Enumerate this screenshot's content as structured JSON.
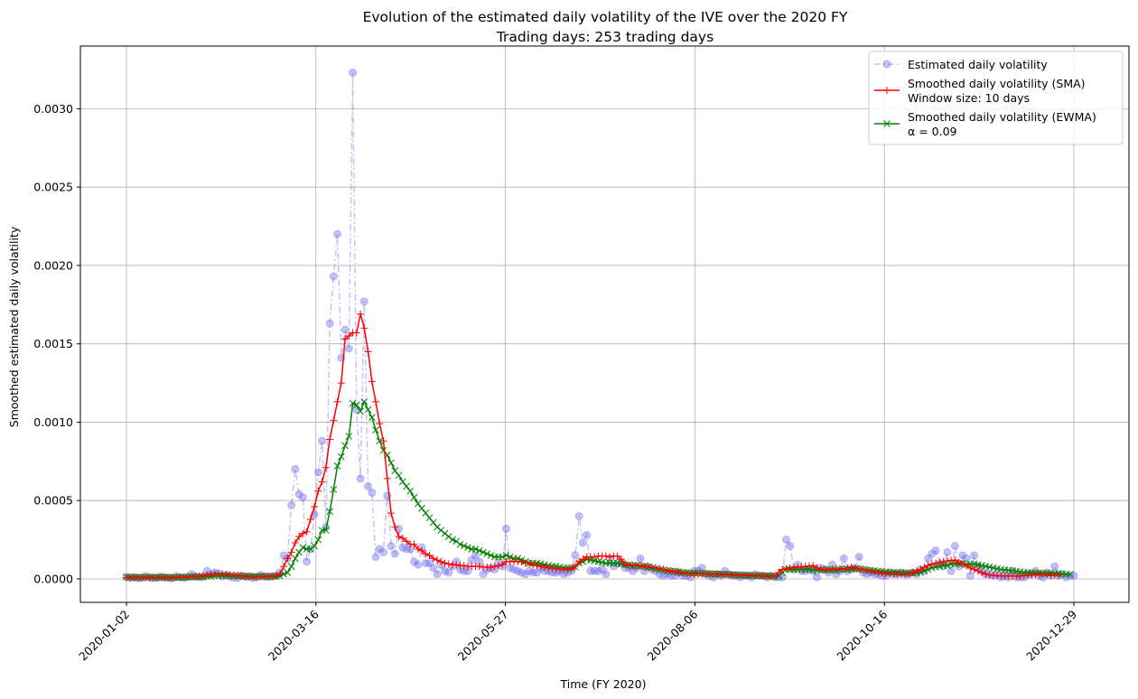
{
  "chart_data": {
    "type": "line",
    "title": "Evolution of the estimated daily volatility of the IVE over the 2020 FY",
    "subtitle": "Trading days: 253 trading days",
    "xlabel": "Time (FY 2020)",
    "ylabel": "Smoothed estimated daily volatility",
    "x_tick_labels": [
      "2020-01-02",
      "2020-03-16",
      "2020-05-27",
      "2020-08-06",
      "2020-10-16",
      "2020-12-29"
    ],
    "y_tick_labels": [
      "0.0000",
      "0.0005",
      "0.0010",
      "0.0015",
      "0.0020",
      "0.0025",
      "0.0030"
    ],
    "ylim": [
      -0.00015,
      0.0034
    ],
    "grid": true,
    "legend_position": "top-right",
    "colors": {
      "raw": "#6a6aee",
      "sma": "#ff0000",
      "ewma": "#008000"
    },
    "series": [
      {
        "key": "raw",
        "name": "Estimated daily volatility",
        "marker": "circle",
        "values": [
          1.2e-05,
          6e-06,
          1e-05,
          4e-06,
          6e-06,
          1.8e-05,
          1e-05,
          4e-06,
          7e-06,
          1.5e-05,
          9e-06,
          6e-06,
          3e-06,
          1.6e-05,
          1e-05,
          6e-06,
          1.3e-05,
          3e-05,
          1.5e-05,
          1.1e-05,
          1.3e-05,
          5e-05,
          3e-05,
          4e-05,
          3.5e-05,
          1.5e-05,
          2.5e-05,
          1.5e-05,
          8e-06,
          6e-06,
          2e-05,
          1.2e-05,
          1.5e-05,
          6e-06,
          1e-05,
          2.5e-05,
          1.5e-05,
          1.2e-05,
          1.5e-05,
          2e-05,
          4e-05,
          0.00015,
          0.00013,
          0.00047,
          0.0007,
          0.00054,
          0.00052,
          0.00011,
          0.00019,
          0.00041,
          0.00068,
          0.00088,
          0.00033,
          0.00163,
          0.00193,
          0.0022,
          0.00141,
          0.00159,
          0.00147,
          0.00323,
          0.00108,
          0.00064,
          0.00177,
          0.00059,
          0.00055,
          0.00014,
          0.00019,
          0.00017,
          0.00053,
          0.00021,
          0.00016,
          0.00032,
          0.0002,
          0.00019,
          0.00019,
          0.00011,
          9e-05,
          0.0002,
          0.0001,
          0.0001,
          7e-05,
          3e-05,
          9e-05,
          5e-05,
          4e-05,
          8e-05,
          0.00011,
          6e-05,
          5e-05,
          5e-05,
          0.00012,
          0.00015,
          0.00011,
          3e-05,
          6e-05,
          7e-05,
          6e-05,
          0.0001,
          8e-05,
          0.00032,
          7e-05,
          6e-05,
          5e-05,
          4e-05,
          3e-05,
          5e-05,
          4e-05,
          4e-05,
          7e-05,
          5e-05,
          5e-05,
          4e-05,
          4e-05,
          5e-05,
          3e-05,
          4e-05,
          5e-05,
          0.00015,
          0.0004,
          0.00023,
          0.00028,
          5e-05,
          5e-05,
          5e-05,
          6e-05,
          3e-05,
          0.00013,
          8e-05,
          0.0001,
          0.0001,
          7e-05,
          7e-05,
          5e-05,
          7e-05,
          0.00013,
          5e-05,
          8e-05,
          6e-05,
          5e-05,
          3e-05,
          2e-05,
          3e-05,
          2e-05,
          2e-05,
          4e-05,
          2e-05,
          2e-05,
          1e-05,
          5e-05,
          5e-05,
          7e-05,
          3e-05,
          2e-05,
          1e-05,
          3e-05,
          2e-05,
          5e-05,
          3e-05,
          2e-05,
          2e-05,
          1e-05,
          2e-05,
          2e-05,
          1e-05,
          3e-05,
          2e-05,
          2e-05,
          1e-05,
          2e-05,
          1e-05,
          1e-05,
          1e-05,
          0.00025,
          0.00021,
          6e-05,
          9e-05,
          5e-05,
          5e-05,
          6e-05,
          5e-05,
          1e-05,
          7e-05,
          6e-05,
          4e-05,
          9e-05,
          3e-05,
          5e-05,
          0.00013,
          5e-05,
          6e-05,
          7e-05,
          0.00014,
          4e-05,
          3e-05,
          4e-05,
          3e-05,
          3e-05,
          2e-05,
          2e-05,
          4e-05,
          3e-05,
          3e-05,
          4e-05,
          3e-05,
          3e-05,
          4e-05,
          3e-05,
          6e-05,
          5e-05,
          0.00013,
          0.00016,
          0.00018,
          0.0001,
          8e-05,
          0.00017,
          5e-05,
          0.00021,
          8e-05,
          0.00015,
          0.00013,
          2e-05,
          0.00015,
          8e-05,
          5e-05,
          3e-05,
          3e-05,
          2e-05,
          3e-05,
          1e-05,
          2e-05,
          1e-05,
          5e-05,
          1e-05,
          1e-05,
          1e-05,
          3e-05,
          3e-05,
          5e-05,
          2e-05,
          1e-05,
          4e-05,
          2e-05,
          8e-05,
          2e-05,
          3e-05,
          1e-05,
          2e-05,
          2e-05
        ]
      },
      {
        "key": "sma",
        "name": "Smoothed daily volatility (SMA)",
        "name_line2": "Window size: 10 days",
        "marker": "plus",
        "values": [
          8e-06,
          8e-06,
          8e-06,
          8e-06,
          8e-06,
          8e-06,
          8e-06,
          9e-06,
          9e-06,
          9e-06,
          8e-06,
          8e-06,
          8e-06,
          1e-05,
          1.1e-05,
          1.2e-05,
          1.3e-05,
          1.5e-05,
          1.6e-05,
          1.8e-05,
          2e-05,
          2.4e-05,
          2.7e-05,
          3e-05,
          3.1e-05,
          3.1e-05,
          2.8e-05,
          2.6e-05,
          2.4e-05,
          2.2e-05,
          1.8e-05,
          1.6e-05,
          1.4e-05,
          1.3e-05,
          1.3e-05,
          1.4e-05,
          1.5e-05,
          1.6e-05,
          1.7e-05,
          2e-05,
          3e-05,
          8e-05,
          0.00013,
          0.00017,
          0.00023,
          0.00027,
          0.00029,
          0.0003,
          0.00038,
          0.00046,
          0.00056,
          0.00062,
          0.00071,
          0.00089,
          0.00101,
          0.00113,
          0.00125,
          0.00153,
          0.00155,
          0.00157,
          0.00157,
          0.00169,
          0.0016,
          0.00145,
          0.00126,
          0.00113,
          0.00099,
          0.00088,
          0.00064,
          0.00042,
          0.00033,
          0.00027,
          0.00026,
          0.00024,
          0.00022,
          0.00022,
          0.00019,
          0.00018,
          0.00016,
          0.00015,
          0.00013,
          0.00012,
          0.00011,
          0.0001,
          9.5e-05,
          9e-05,
          9e-05,
          8.5e-05,
          8.5e-05,
          8e-05,
          8e-05,
          8e-05,
          8e-05,
          7.5e-05,
          7.5e-05,
          7.5e-05,
          8e-05,
          8.5e-05,
          9e-05,
          0.00011,
          0.00011,
          0.00011,
          0.00011,
          0.00011,
          0.0001,
          0.0001,
          9e-05,
          8.5e-05,
          8e-05,
          7.5e-05,
          7e-05,
          7e-05,
          6.5e-05,
          6e-05,
          6e-05,
          6e-05,
          6.5e-05,
          8e-05,
          0.00011,
          0.000125,
          0.00014,
          0.00014,
          0.00014,
          0.000145,
          0.000145,
          0.000145,
          0.00014,
          0.000145,
          0.000145,
          0.000125,
          9.5e-05,
          8.5e-05,
          8.5e-05,
          8.5e-05,
          8.5e-05,
          8e-05,
          7.5e-05,
          7.5e-05,
          7e-05,
          6.5e-05,
          6e-05,
          5.5e-05,
          5e-05,
          4.5e-05,
          4e-05,
          3.5e-05,
          3.5e-05,
          3.3e-05,
          3e-05,
          3e-05,
          3.2e-05,
          3.2e-05,
          3.3e-05,
          3e-05,
          2.8e-05,
          2.8e-05,
          2.7e-05,
          2.6e-05,
          2.5e-05,
          2.4e-05,
          2.3e-05,
          2.2e-05,
          2.2e-05,
          2.1e-05,
          2e-05,
          2e-05,
          1.9e-05,
          1.8e-05,
          1.7e-05,
          1.6e-05,
          4e-05,
          6e-05,
          6.5e-05,
          7e-05,
          7.2e-05,
          7.5e-05,
          7.8e-05,
          8e-05,
          8.2e-05,
          8.5e-05,
          7e-05,
          6.2e-05,
          6e-05,
          6e-05,
          6e-05,
          6.5e-05,
          6.5e-05,
          6.5e-05,
          6.8e-05,
          7.5e-05,
          7e-05,
          6.5e-05,
          6e-05,
          5.5e-05,
          5e-05,
          4.5e-05,
          4e-05,
          4e-05,
          3.5e-05,
          3.2e-05,
          3.2e-05,
          3e-05,
          3e-05,
          3e-05,
          3.2e-05,
          4e-05,
          5e-05,
          6e-05,
          7.5e-05,
          8.5e-05,
          9.5e-05,
          0.0001,
          0.000105,
          0.00011,
          0.000115,
          0.000118,
          0.00012,
          0.000105,
          9.5e-05,
          8.5e-05,
          7e-05,
          6e-05,
          5e-05,
          4e-05,
          3e-05,
          2.5e-05,
          2.2e-05,
          2e-05,
          2e-05,
          1.8e-05,
          1.8e-05,
          1.8e-05,
          1.8e-05,
          1.8e-05,
          2e-05,
          2.2e-05,
          2.5e-05,
          2.8e-05,
          3e-05,
          3e-05,
          2.8e-05,
          2.5e-05,
          2.5e-05,
          2.5e-05
        ]
      },
      {
        "key": "ewma",
        "name": "Smoothed daily volatility (EWMA)",
        "name_line2": "α = 0.09",
        "marker": "x",
        "values": [
          1.2e-05,
          1.1e-05,
          1.1e-05,
          1e-05,
          1e-05,
          1.1e-05,
          1.1e-05,
          1e-05,
          1e-05,
          1e-05,
          1e-05,
          1e-05,
          9e-06,
          1e-05,
          1e-05,
          1e-05,
          1e-05,
          1.2e-05,
          1.2e-05,
          1.2e-05,
          1.3e-05,
          1.6e-05,
          1.7e-05,
          1.9e-05,
          2.1e-05,
          2e-05,
          2.1e-05,
          2e-05,
          1.9e-05,
          1.8e-05,
          1.8e-05,
          1.7e-05,
          1.7e-05,
          1.6e-05,
          1.6e-05,
          1.6e-05,
          1.6e-05,
          1.6e-05,
          1.6e-05,
          1.6e-05,
          1.8e-05,
          3e-05,
          4e-05,
          8e-05,
          0.00013,
          0.00017,
          0.0002,
          0.00019,
          0.00019,
          0.00021,
          0.00025,
          0.00031,
          0.00031,
          0.00043,
          0.00057,
          0.00072,
          0.00078,
          0.00085,
          0.00091,
          0.00112,
          0.00111,
          0.00107,
          0.00113,
          0.00108,
          0.00103,
          0.00095,
          0.00088,
          0.00082,
          0.00079,
          0.00074,
          0.00069,
          0.00066,
          0.00062,
          0.00059,
          0.00056,
          0.00052,
          0.00048,
          0.00045,
          0.00042,
          0.00039,
          0.00036,
          0.00033,
          0.00031,
          0.00029,
          0.00027,
          0.00025,
          0.00024,
          0.00022,
          0.00021,
          0.0002,
          0.00019,
          0.00019,
          0.00018,
          0.00017,
          0.00016,
          0.00015,
          0.00014,
          0.00014,
          0.00014,
          0.00015,
          0.00014,
          0.00013,
          0.00013,
          0.00012,
          0.00011,
          0.0001,
          0.0001,
          0.0001,
          9.5e-05,
          9e-05,
          8.5e-05,
          8e-05,
          8e-05,
          7.5e-05,
          7e-05,
          7e-05,
          7e-05,
          7.5e-05,
          0.0001,
          0.00011,
          0.000125,
          0.00012,
          0.000115,
          0.00011,
          0.000105,
          0.0001,
          0.0001,
          0.0001,
          0.0001,
          9.5e-05,
          9e-05,
          9e-05,
          8.5e-05,
          8.5e-05,
          8e-05,
          8e-05,
          7.5e-05,
          7e-05,
          6.5e-05,
          6e-05,
          5.5e-05,
          5.2e-05,
          5e-05,
          4.8e-05,
          4.5e-05,
          4.2e-05,
          4e-05,
          3.8e-05,
          3.8e-05,
          3.6e-05,
          3.5e-05,
          3.4e-05,
          3.3e-05,
          3.2e-05,
          3.1e-05,
          3e-05,
          2.9e-05,
          2.8e-05,
          2.7e-05,
          2.6e-05,
          2.5e-05,
          2.4e-05,
          2.3e-05,
          2.2e-05,
          2.1e-05,
          2.1e-05,
          2e-05,
          1.9e-05,
          1.8e-05,
          1.7e-05,
          2e-05,
          4e-05,
          6e-05,
          6e-05,
          6e-05,
          6e-05,
          6e-05,
          6e-05,
          6e-05,
          5.5e-05,
          5.5e-05,
          5.5e-05,
          5.5e-05,
          5.8e-05,
          5.5e-05,
          5.5e-05,
          6e-05,
          6e-05,
          6e-05,
          6.2e-05,
          6.5e-05,
          6.2e-05,
          6e-05,
          5.7e-05,
          5.5e-05,
          5.2e-05,
          5e-05,
          4.7e-05,
          4.5e-05,
          4.3e-05,
          4.2e-05,
          4.1e-05,
          4e-05,
          3.9e-05,
          3.8e-05,
          3.8e-05,
          4e-05,
          4.1e-05,
          5e-05,
          6e-05,
          7e-05,
          7.5e-05,
          7.8e-05,
          8.5e-05,
          8.5e-05,
          9.5e-05,
          9.5e-05,
          9.8e-05,
          0.0001,
          9e-05,
          9.5e-05,
          9.5e-05,
          9e-05,
          8.5e-05,
          8e-05,
          7.5e-05,
          7e-05,
          6.5e-05,
          6e-05,
          5.7e-05,
          5.5e-05,
          5.2e-05,
          4.8e-05,
          4.5e-05,
          4.2e-05,
          4e-05,
          4e-05,
          3.8e-05,
          3.8e-05,
          3.5e-05,
          3.5e-05,
          3.7e-05,
          3.5e-05,
          3.5e-05,
          3.2e-05,
          3e-05,
          2.9e-05
        ]
      }
    ]
  }
}
